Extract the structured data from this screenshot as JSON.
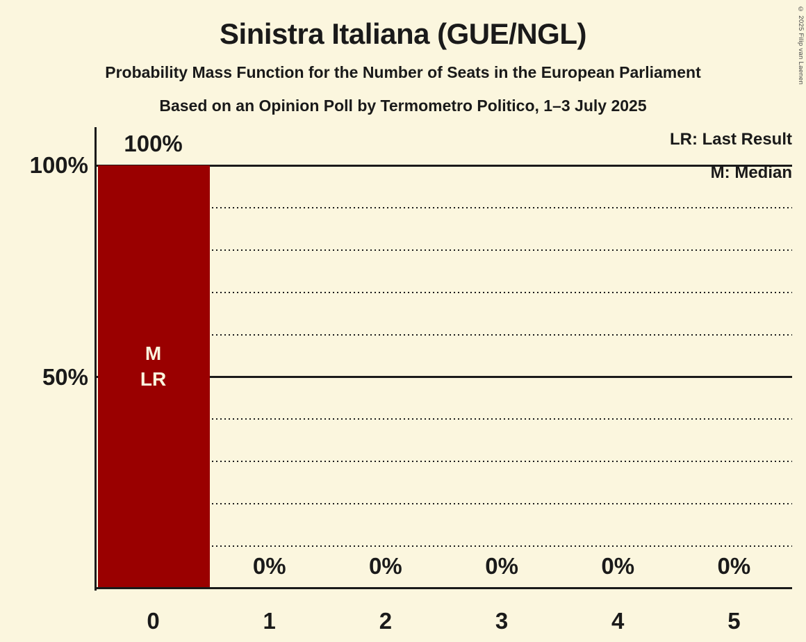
{
  "page": {
    "background_color": "#FBF6DE",
    "text_color": "#1A1A1A"
  },
  "copyright": "© 2025 Filip van Laenen",
  "header": {
    "title": "Sinistra Italiana (GUE/NGL)",
    "subtitle1": "Probability Mass Function for the Number of Seats in the European Parliament",
    "subtitle2": "Based on an Opinion Poll by Termometro Politico, 1–3 July 2025"
  },
  "legend": {
    "lr": "LR: Last Result",
    "m": "M: Median"
  },
  "chart_data": {
    "type": "bar",
    "title": "Sinistra Italiana (GUE/NGL)",
    "xlabel": "",
    "ylabel": "",
    "categories": [
      "0",
      "1",
      "2",
      "3",
      "4",
      "5"
    ],
    "values": [
      100,
      0,
      0,
      0,
      0,
      0
    ],
    "bar_value_labels": [
      "100%",
      "0%",
      "0%",
      "0%",
      "0%",
      "0%"
    ],
    "bar_annotations": [
      [
        "M",
        "LR"
      ],
      [],
      [],
      [],
      [],
      []
    ],
    "ylim": [
      0,
      100
    ],
    "y_ticks": [
      {
        "value": 100,
        "label": "100%"
      },
      {
        "value": 50,
        "label": "50%"
      }
    ],
    "gridlines": {
      "dotted_at": [
        10,
        20,
        30,
        40,
        60,
        70,
        80,
        90
      ],
      "solid_at": [
        50,
        100
      ]
    },
    "grid": true,
    "legend_position": "top-right",
    "bar_color": "#9A0000",
    "bar_label_color": "#FBF6DE",
    "median_marker": "M",
    "last_result_marker": "LR",
    "median_seats": 0,
    "last_result_seats": 0
  }
}
